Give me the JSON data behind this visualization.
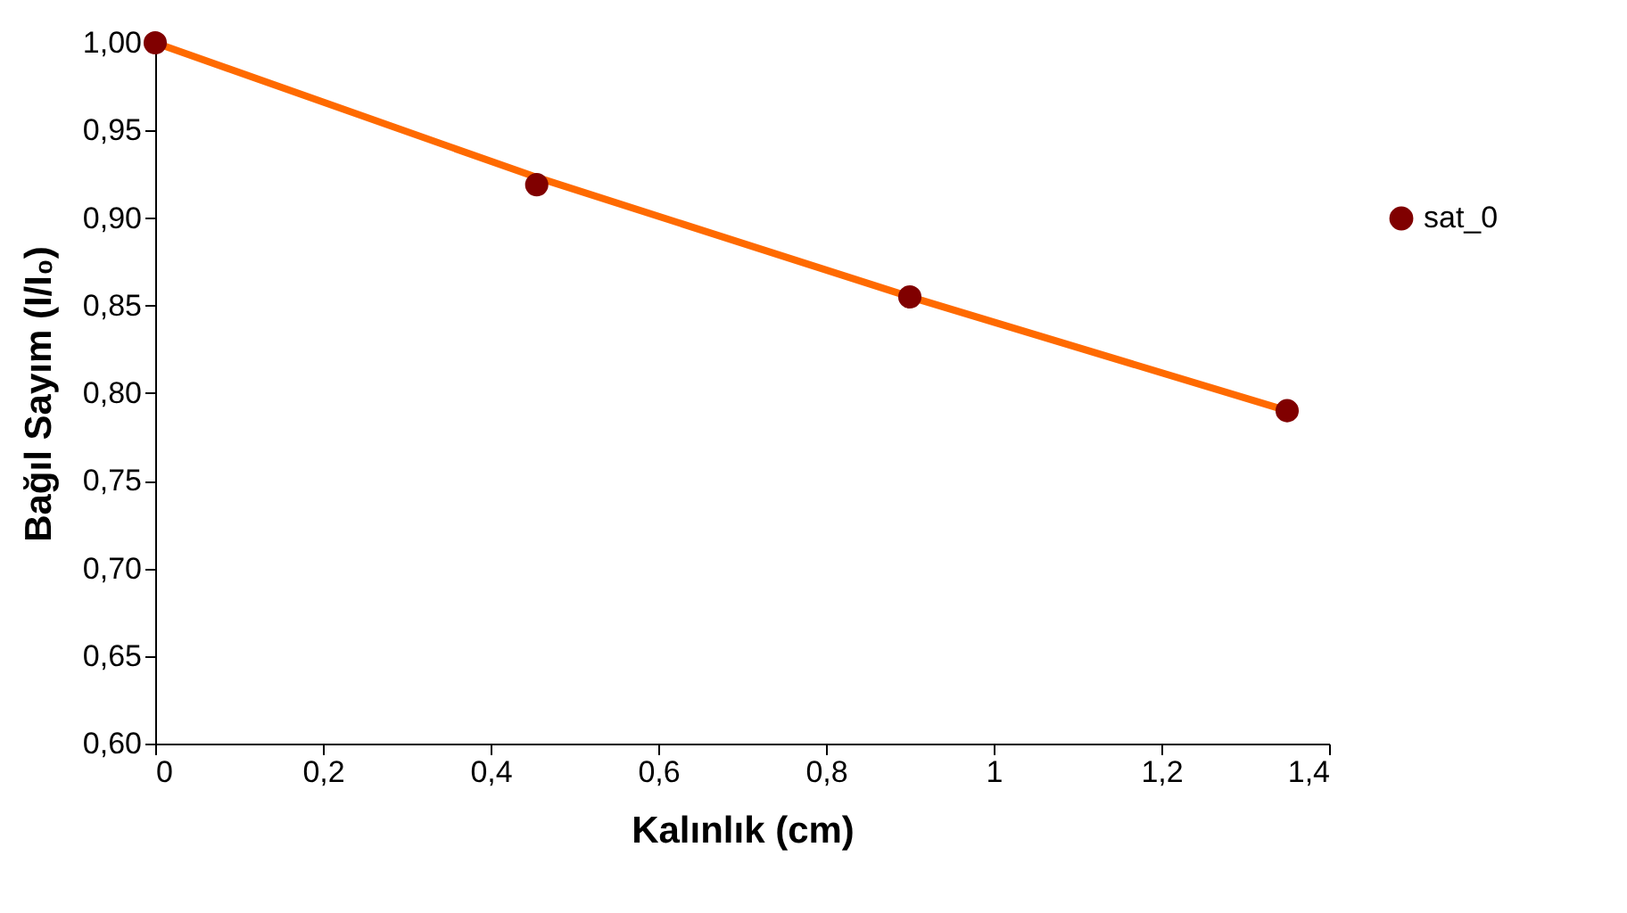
{
  "chart_data": {
    "type": "scatter",
    "xlabel": "Kalınlık (cm)",
    "ylabel": "Bağıl Sayım (I/I₀)",
    "x": [
      0,
      0.455,
      0.9,
      1.35
    ],
    "series": [
      {
        "name": "sat_0",
        "color": "#800000",
        "marker": "circle",
        "values": [
          1.0,
          0.919,
          0.855,
          0.79
        ]
      },
      {
        "type": "line",
        "color": "#ff6a00",
        "marker": "none",
        "x": [
          0,
          0.45,
          0.9,
          1.35
        ],
        "values": [
          1.0,
          0.924,
          0.855,
          0.79
        ]
      }
    ],
    "xlim": [
      0,
      1.4
    ],
    "xticks": [
      0,
      {
        "value": 0.2,
        "label": "0,2"
      },
      {
        "value": 0.4,
        "label": "0,4"
      },
      {
        "value": 0.6,
        "label": "0,6"
      },
      {
        "value": 0.8,
        "label": "0,8"
      },
      1,
      {
        "value": 1.2,
        "label": "1,2"
      },
      {
        "value": 1.4,
        "label": "1,4"
      }
    ],
    "ylim": [
      0.6,
      1.0
    ],
    "yticks": [
      {
        "value": 0.6,
        "label": "0,60"
      },
      {
        "value": 0.65,
        "label": "0,65"
      },
      {
        "value": 0.7,
        "label": "0,70"
      },
      {
        "value": 0.75,
        "label": "0,75"
      },
      {
        "value": 0.8,
        "label": "0,80"
      },
      {
        "value": 0.85,
        "label": "0,85"
      },
      {
        "value": 0.9,
        "label": "0,90"
      },
      {
        "value": 0.95,
        "label": "0,95"
      },
      {
        "value": 1.0,
        "label": "1,00"
      }
    ],
    "grid": false,
    "legend": "right",
    "line_style": "solid"
  }
}
